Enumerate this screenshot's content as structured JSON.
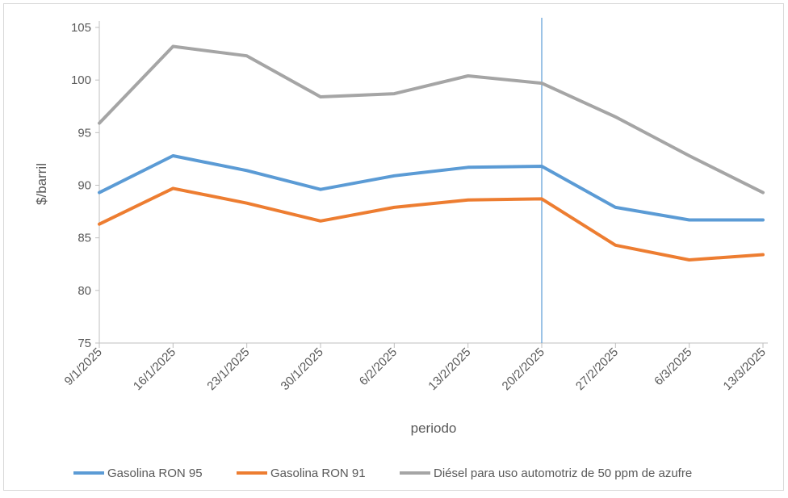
{
  "chart_data": {
    "type": "line",
    "title": "",
    "xlabel": "periodo",
    "ylabel": "$/barril",
    "ylim": [
      75,
      105
    ],
    "yticks": [
      75,
      80,
      85,
      90,
      95,
      100,
      105
    ],
    "grid": false,
    "legend": "bottom",
    "categories": [
      "9/1/2025",
      "16/1/2025",
      "23/1/2025",
      "30/1/2025",
      "6/2/2025",
      "13/2/2025",
      "20/2/2025",
      "27/2/2025",
      "6/3/2025",
      "13/3/2025"
    ],
    "series": [
      {
        "name": "Gasolina RON 95",
        "color": "#5B9BD5",
        "values": [
          89.3,
          92.8,
          91.4,
          89.6,
          90.9,
          91.7,
          91.8,
          87.9,
          86.7,
          86.7
        ]
      },
      {
        "name": "Gasolina RON 91",
        "color": "#ED7D31",
        "values": [
          86.3,
          89.7,
          88.3,
          86.6,
          87.9,
          88.6,
          88.7,
          84.3,
          82.9,
          83.4
        ]
      },
      {
        "name": "Diésel para uso automotriz de 50 ppm de azufre",
        "color": "#A5A5A5",
        "values": [
          95.9,
          103.2,
          102.3,
          98.4,
          98.7,
          100.4,
          99.7,
          96.5,
          92.8,
          89.3
        ]
      }
    ],
    "reference_line": {
      "category": "20/2/2025",
      "color": "#5B9BD5"
    }
  }
}
